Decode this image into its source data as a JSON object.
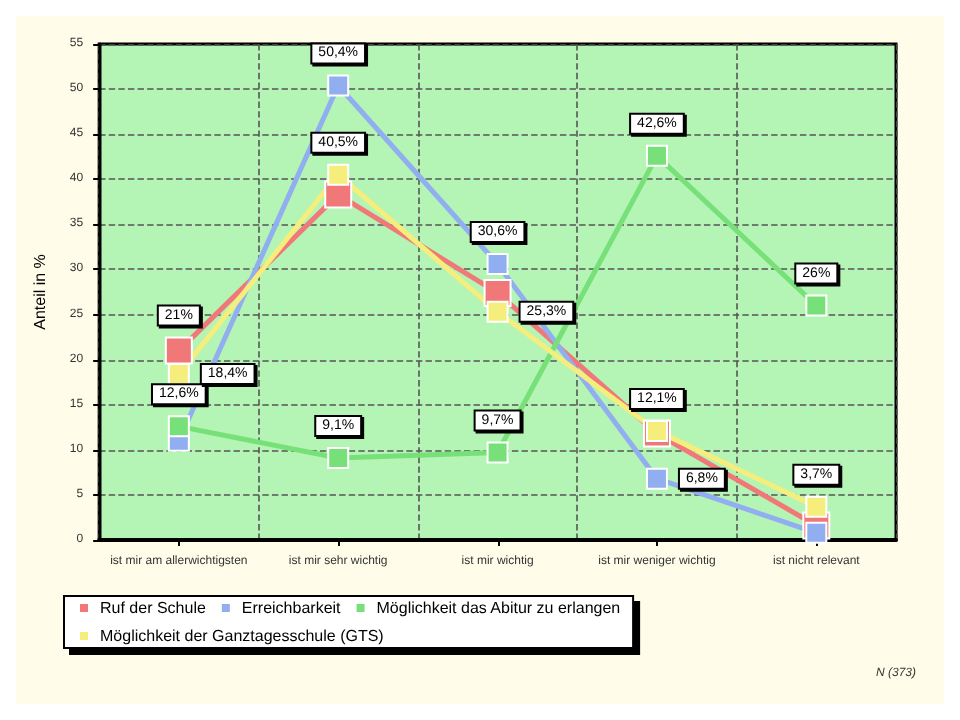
{
  "chart_data": {
    "type": "line",
    "ylabel": "Anteil in %",
    "categories": [
      "ist mir am allerwichtigsten",
      "ist mir sehr wichtig",
      "ist mir wichtig",
      "ist mir weniger wichtig",
      "ist nicht relevant"
    ],
    "series": [
      {
        "name": "Ruf der Schule",
        "color": "#f07878",
        "values": [
          21,
          38.3,
          27.4,
          11.8,
          1.6
        ],
        "value_labels": [
          "21%",
          null,
          null,
          null,
          null
        ]
      },
      {
        "name": "Erreichbarkeit",
        "color": "#90aef0",
        "values": [
          11,
          50.4,
          30.6,
          6.8,
          0.8
        ],
        "value_labels": [
          null,
          "50,4%",
          "30,6%",
          "6,8%",
          null
        ]
      },
      {
        "name": "Möglichkeit das Abitur zu erlangen",
        "color": "#78e078",
        "values": [
          12.6,
          9.1,
          9.7,
          42.6,
          26
        ],
        "value_labels": [
          "12,6%",
          "9,1%",
          "9,7%",
          "42,6%",
          "26%"
        ]
      },
      {
        "name": "Möglichkeit der Ganztagesschule (GTS)",
        "color": "#f6ee7c",
        "values": [
          18.4,
          40.5,
          25.3,
          12.1,
          3.7
        ],
        "value_labels": [
          "18,4%",
          "40,5%",
          "25,3%",
          "12,1%",
          "3,7%"
        ]
      }
    ],
    "ylim": [
      0,
      55
    ],
    "yticks": [
      0,
      5,
      10,
      15,
      20,
      25,
      30,
      35,
      40,
      45,
      50,
      55
    ],
    "grid": true,
    "legend": "bottom",
    "marker": "square",
    "line_style": "solid",
    "annotations": [
      "N (373)"
    ]
  }
}
